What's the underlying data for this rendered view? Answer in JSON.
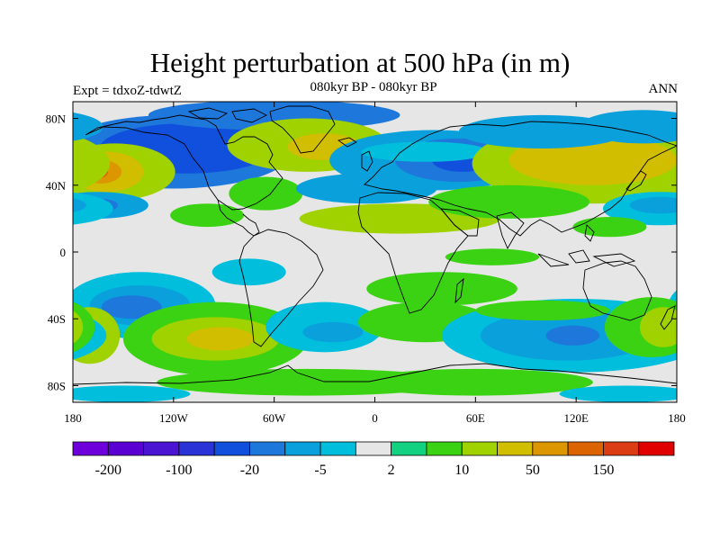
{
  "header": {
    "title": "Height perturbation at 500 hPa (in m)",
    "subtitle": "080kyr BP - 080kyr BP",
    "left": "Expt = tdxoZ-tdwtZ",
    "right": "ANN"
  },
  "map": {
    "projection": "cylindrical-equidistant",
    "lon_range": [
      -180,
      180
    ],
    "lat_range": [
      -90,
      90
    ],
    "x_ticks": [
      {
        "lon": -180,
        "label": "180"
      },
      {
        "lon": -120,
        "label": "120W"
      },
      {
        "lon": -60,
        "label": "60W"
      },
      {
        "lon": 0,
        "label": "0"
      },
      {
        "lon": 60,
        "label": "60E"
      },
      {
        "lon": 120,
        "label": "120E"
      },
      {
        "lon": 180,
        "label": "180"
      }
    ],
    "y_ticks": [
      {
        "lat": 80,
        "label": "80N"
      },
      {
        "lat": 40,
        "label": "40N"
      },
      {
        "lat": 0,
        "label": "0"
      },
      {
        "lat": -40,
        "label": "40S"
      },
      {
        "lat": -80,
        "label": "80S"
      }
    ],
    "background_color": "#e6e6e6",
    "coastline_color": "#000000"
  },
  "colorbar": {
    "colors": [
      "#6e00dc",
      "#5a00d2",
      "#4b14d2",
      "#2a34d6",
      "#1150dc",
      "#1e78dc",
      "#0aa0dc",
      "#00bedc",
      "#e6e6e6",
      "#12d282",
      "#3cd214",
      "#a0d200",
      "#d2be00",
      "#dc9600",
      "#dc6400",
      "#dc3c14",
      "#e00000"
    ],
    "labels": [
      {
        "boundary": 1,
        "text": "-200"
      },
      {
        "boundary": 3,
        "text": "-100"
      },
      {
        "boundary": 5,
        "text": "-20"
      },
      {
        "boundary": 7,
        "text": "-5"
      },
      {
        "boundary": 9,
        "text": "2"
      },
      {
        "boundary": 11,
        "text": "10"
      },
      {
        "boundary": 13,
        "text": "50"
      },
      {
        "boundary": 15,
        "text": "150"
      }
    ]
  },
  "field_blobs": [
    {
      "lon": -120,
      "lat": 60,
      "rx": 70,
      "ry": 22,
      "level": 5
    },
    {
      "lon": -112,
      "lat": 62,
      "rx": 52,
      "ry": 15,
      "level": 4
    },
    {
      "lon": -60,
      "lat": 82,
      "rx": 75,
      "ry": 9,
      "level": 5
    },
    {
      "lon": -155,
      "lat": 48,
      "rx": 36,
      "ry": 17,
      "level": 11
    },
    {
      "lon": -160,
      "lat": 48,
      "rx": 22,
      "ry": 12,
      "level": 12
    },
    {
      "lon": -163,
      "lat": 48,
      "rx": 12,
      "ry": 7,
      "level": 13
    },
    {
      "lon": -165,
      "lat": 48,
      "rx": 6,
      "ry": 4,
      "level": 14
    },
    {
      "lon": -165,
      "lat": 28,
      "rx": 30,
      "ry": 8,
      "level": 6
    },
    {
      "lon": -165,
      "lat": 28,
      "rx": 12,
      "ry": 4,
      "level": 5
    },
    {
      "lon": -100,
      "lat": 22,
      "rx": 22,
      "ry": 7,
      "level": 10
    },
    {
      "lon": -65,
      "lat": 35,
      "rx": 22,
      "ry": 10,
      "level": 10
    },
    {
      "lon": -40,
      "lat": 64,
      "rx": 48,
      "ry": 16,
      "level": 11
    },
    {
      "lon": -30,
      "lat": 63,
      "rx": 22,
      "ry": 8,
      "level": 12
    },
    {
      "lon": 35,
      "lat": 55,
      "rx": 62,
      "ry": 18,
      "level": 6
    },
    {
      "lon": 50,
      "lat": 55,
      "rx": 38,
      "ry": 13,
      "level": 5
    },
    {
      "lon": 52,
      "lat": 55,
      "rx": 18,
      "ry": 7,
      "level": 4
    },
    {
      "lon": -5,
      "lat": 38,
      "rx": 42,
      "ry": 9,
      "level": 6
    },
    {
      "lon": 30,
      "lat": 60,
      "rx": 38,
      "ry": 6,
      "level": 7
    },
    {
      "lon": 15,
      "lat": 20,
      "rx": 60,
      "ry": 9,
      "level": 11
    },
    {
      "lon": 130,
      "lat": 53,
      "rx": 72,
      "ry": 24,
      "level": 11
    },
    {
      "lon": 130,
      "lat": 55,
      "rx": 50,
      "ry": 15,
      "level": 12
    },
    {
      "lon": 100,
      "lat": 72,
      "rx": 50,
      "ry": 10,
      "level": 6
    },
    {
      "lon": 160,
      "lat": 75,
      "rx": 38,
      "ry": 10,
      "level": 6
    },
    {
      "lon": 170,
      "lat": 26,
      "rx": 34,
      "ry": 10,
      "level": 7
    },
    {
      "lon": 170,
      "lat": 28,
      "rx": 18,
      "ry": 5,
      "level": 6
    },
    {
      "lon": 140,
      "lat": 15,
      "rx": 22,
      "ry": 6,
      "level": 10
    },
    {
      "lon": 80,
      "lat": 30,
      "rx": 48,
      "ry": 10,
      "level": 10
    },
    {
      "lon": 70,
      "lat": -3,
      "rx": 28,
      "ry": 5,
      "level": 10
    },
    {
      "lon": -140,
      "lat": -32,
      "rx": 45,
      "ry": 20,
      "level": 7
    },
    {
      "lon": -140,
      "lat": -32,
      "rx": 30,
      "ry": 12,
      "level": 6
    },
    {
      "lon": -145,
      "lat": -33,
      "rx": 18,
      "ry": 7,
      "level": 5
    },
    {
      "lon": -75,
      "lat": -12,
      "rx": 22,
      "ry": 8,
      "level": 7
    },
    {
      "lon": -170,
      "lat": -50,
      "rx": 18,
      "ry": 17,
      "level": 11
    },
    {
      "lon": -175,
      "lat": -50,
      "rx": 10,
      "ry": 8,
      "level": 12
    },
    {
      "lon": -95,
      "lat": -52,
      "rx": 55,
      "ry": 22,
      "level": 10
    },
    {
      "lon": -95,
      "lat": -52,
      "rx": 38,
      "ry": 13,
      "level": 11
    },
    {
      "lon": -92,
      "lat": -52,
      "rx": 20,
      "ry": 7,
      "level": 12
    },
    {
      "lon": -30,
      "lat": -45,
      "rx": 35,
      "ry": 15,
      "level": 7
    },
    {
      "lon": -25,
      "lat": -48,
      "rx": 18,
      "ry": 6,
      "level": 6
    },
    {
      "lon": 40,
      "lat": -22,
      "rx": 45,
      "ry": 10,
      "level": 10
    },
    {
      "lon": 30,
      "lat": -42,
      "rx": 40,
      "ry": 12,
      "level": 10
    },
    {
      "lon": 120,
      "lat": -50,
      "rx": 80,
      "ry": 22,
      "level": 7
    },
    {
      "lon": 115,
      "lat": -50,
      "rx": 52,
      "ry": 15,
      "level": 6
    },
    {
      "lon": 118,
      "lat": -50,
      "rx": 16,
      "ry": 6,
      "level": 5
    },
    {
      "lon": 165,
      "lat": -45,
      "rx": 28,
      "ry": 18,
      "level": 10
    },
    {
      "lon": 172,
      "lat": -45,
      "rx": 14,
      "ry": 12,
      "level": 11
    },
    {
      "lon": 100,
      "lat": -35,
      "rx": 40,
      "ry": 6,
      "level": 10
    },
    {
      "lon": -40,
      "lat": -78,
      "rx": 90,
      "ry": 8,
      "level": 10
    },
    {
      "lon": 60,
      "lat": -78,
      "rx": 70,
      "ry": 8,
      "level": 10
    },
    {
      "lon": -150,
      "lat": -85,
      "rx": 40,
      "ry": 5,
      "level": 7
    },
    {
      "lon": 150,
      "lat": -85,
      "rx": 40,
      "ry": 5,
      "level": 7
    }
  ]
}
